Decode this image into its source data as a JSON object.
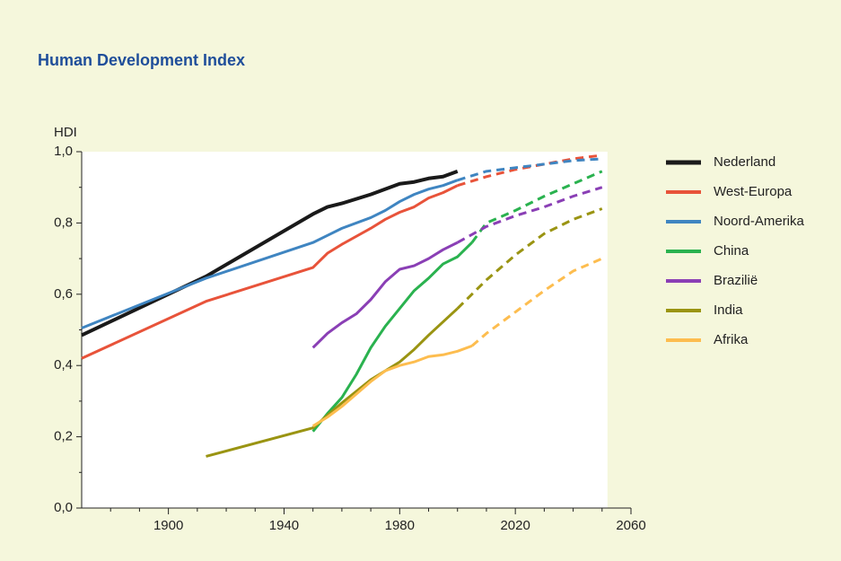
{
  "chart_data": {
    "type": "line",
    "title": "Human Development Index",
    "y_label": "HDI",
    "xlim": [
      1870,
      2060
    ],
    "xticks": [
      1900,
      1940,
      1980,
      2020,
      2060
    ],
    "minor_xticks": [
      1880,
      1890,
      1910,
      1920,
      1930,
      1950,
      1960,
      1970,
      1990,
      2000,
      2010,
      2030,
      2040,
      2050
    ],
    "ylim": [
      0,
      1
    ],
    "yticks": [
      {
        "value": 0,
        "label": "0,0"
      },
      {
        "value": 0.2,
        "label": "0,2"
      },
      {
        "value": 0.4,
        "label": "0,4"
      },
      {
        "value": 0.6,
        "label": "0,6"
      },
      {
        "value": 0.8,
        "label": "0,8"
      },
      {
        "value": 1,
        "label": "1,0"
      }
    ],
    "minor_yticks": [
      0.1,
      0.3,
      0.5,
      0.7,
      0.9
    ],
    "legend": "right",
    "series": [
      {
        "name": "Nederland",
        "color": "#1a1a1a",
        "projection_from": null,
        "x": [
          1870,
          1913,
          1950,
          1955,
          1960,
          1970,
          1980,
          1985,
          1990,
          1995,
          2000
        ],
        "values": [
          0.485,
          0.65,
          0.825,
          0.845,
          0.855,
          0.88,
          0.91,
          0.915,
          0.925,
          0.93,
          0.945
        ]
      },
      {
        "name": "West-Europa",
        "color": "#e8533a",
        "projection_from": 2000,
        "x": [
          1870,
          1913,
          1950,
          1955,
          1960,
          1970,
          1975,
          1980,
          1985,
          1990,
          1995,
          2000,
          2010,
          2020,
          2030,
          2040,
          2050
        ],
        "values": [
          0.42,
          0.58,
          0.675,
          0.715,
          0.74,
          0.785,
          0.81,
          0.83,
          0.845,
          0.87,
          0.885,
          0.905,
          0.93,
          0.95,
          0.965,
          0.98,
          0.99
        ]
      },
      {
        "name": "Noord-Amerika",
        "color": "#3f85c1",
        "projection_from": 2000,
        "x": [
          1870,
          1913,
          1950,
          1955,
          1960,
          1970,
          1975,
          1980,
          1985,
          1990,
          1995,
          2000,
          2010,
          2020,
          2030,
          2040,
          2050
        ],
        "values": [
          0.505,
          0.645,
          0.745,
          0.765,
          0.785,
          0.815,
          0.835,
          0.86,
          0.88,
          0.895,
          0.905,
          0.92,
          0.945,
          0.955,
          0.965,
          0.975,
          0.98
        ]
      },
      {
        "name": "China",
        "color": "#2ab24f",
        "projection_from": 2005,
        "x": [
          1950,
          1955,
          1960,
          1965,
          1970,
          1975,
          1980,
          1985,
          1990,
          1995,
          2000,
          2005,
          2010,
          2020,
          2030,
          2040,
          2050
        ],
        "values": [
          0.215,
          0.265,
          0.31,
          0.375,
          0.45,
          0.51,
          0.56,
          0.61,
          0.645,
          0.685,
          0.705,
          0.745,
          0.8,
          0.835,
          0.875,
          0.91,
          0.945
        ]
      },
      {
        "name": "Brazilië",
        "color": "#8a3fb5",
        "projection_from": 2000,
        "x": [
          1950,
          1955,
          1960,
          1965,
          1970,
          1975,
          1980,
          1985,
          1990,
          1995,
          2000,
          2010,
          2020,
          2030,
          2040,
          2050
        ],
        "values": [
          0.45,
          0.49,
          0.52,
          0.545,
          0.585,
          0.635,
          0.67,
          0.68,
          0.7,
          0.725,
          0.745,
          0.79,
          0.82,
          0.845,
          0.875,
          0.9
        ]
      },
      {
        "name": "India",
        "color": "#9a9412",
        "projection_from": 2000,
        "x": [
          1913,
          1950,
          1955,
          1960,
          1970,
          1980,
          1985,
          1990,
          2000,
          2010,
          2020,
          2030,
          2040,
          2050
        ],
        "values": [
          0.145,
          0.225,
          0.26,
          0.295,
          0.36,
          0.41,
          0.445,
          0.485,
          0.56,
          0.64,
          0.71,
          0.77,
          0.81,
          0.84
        ]
      },
      {
        "name": "Afrika",
        "color": "#fdbd4f",
        "projection_from": 2005,
        "x": [
          1950,
          1955,
          1960,
          1965,
          1970,
          1975,
          1980,
          1985,
          1990,
          1995,
          2000,
          2005,
          2010,
          2020,
          2030,
          2040,
          2050
        ],
        "values": [
          0.23,
          0.255,
          0.285,
          0.32,
          0.355,
          0.385,
          0.4,
          0.41,
          0.425,
          0.43,
          0.44,
          0.455,
          0.49,
          0.55,
          0.61,
          0.665,
          0.7
        ]
      }
    ]
  }
}
